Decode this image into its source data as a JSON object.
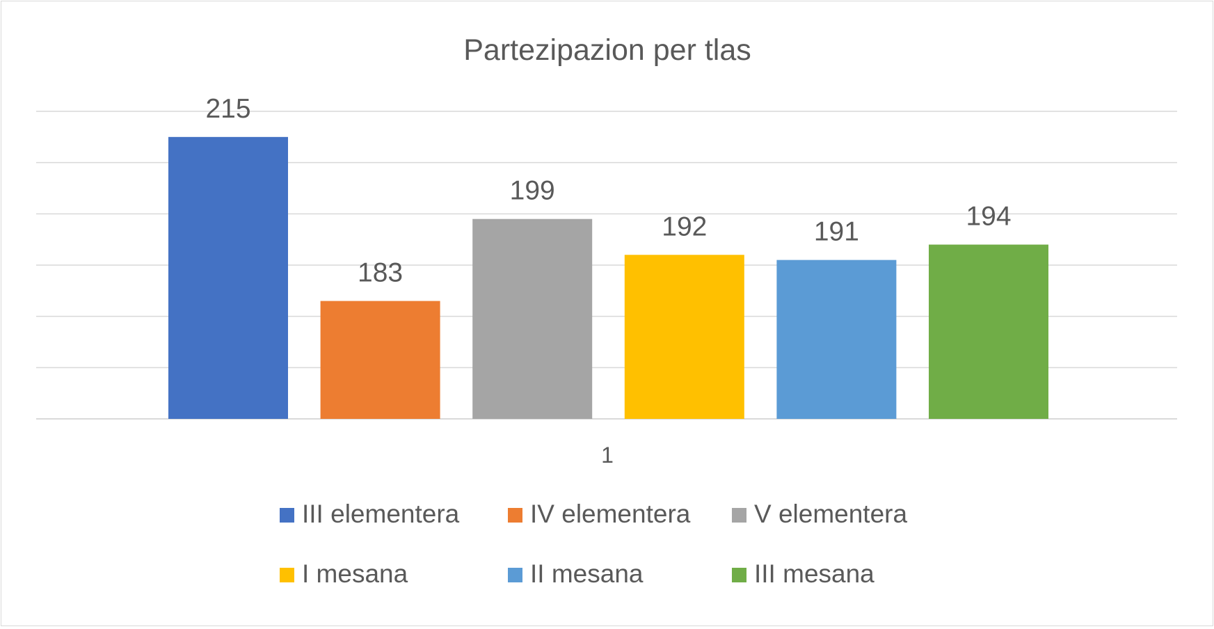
{
  "chart_data": {
    "type": "bar",
    "title": "Partezipazion per tlas",
    "xlabel": "",
    "ylabel": "",
    "categories": [
      "1"
    ],
    "series": [
      {
        "name": "III elementera",
        "values": [
          215
        ],
        "color": "#4472C4"
      },
      {
        "name": "IV elementera",
        "values": [
          183
        ],
        "color": "#ED7D31"
      },
      {
        "name": "V elementera",
        "values": [
          199
        ],
        "color": "#A5A5A5"
      },
      {
        "name": "I mesana",
        "values": [
          192
        ],
        "color": "#FFC000"
      },
      {
        "name": "II mesana",
        "values": [
          191
        ],
        "color": "#5B9BD5"
      },
      {
        "name": "III mesana",
        "values": [
          194
        ],
        "color": "#70AD47"
      }
    ],
    "ylim": [
      160,
      220
    ],
    "y_gridline_step": 10,
    "grid": true,
    "data_labels": true,
    "legend": "bottom",
    "gridline_color": "#d9d9d9"
  }
}
